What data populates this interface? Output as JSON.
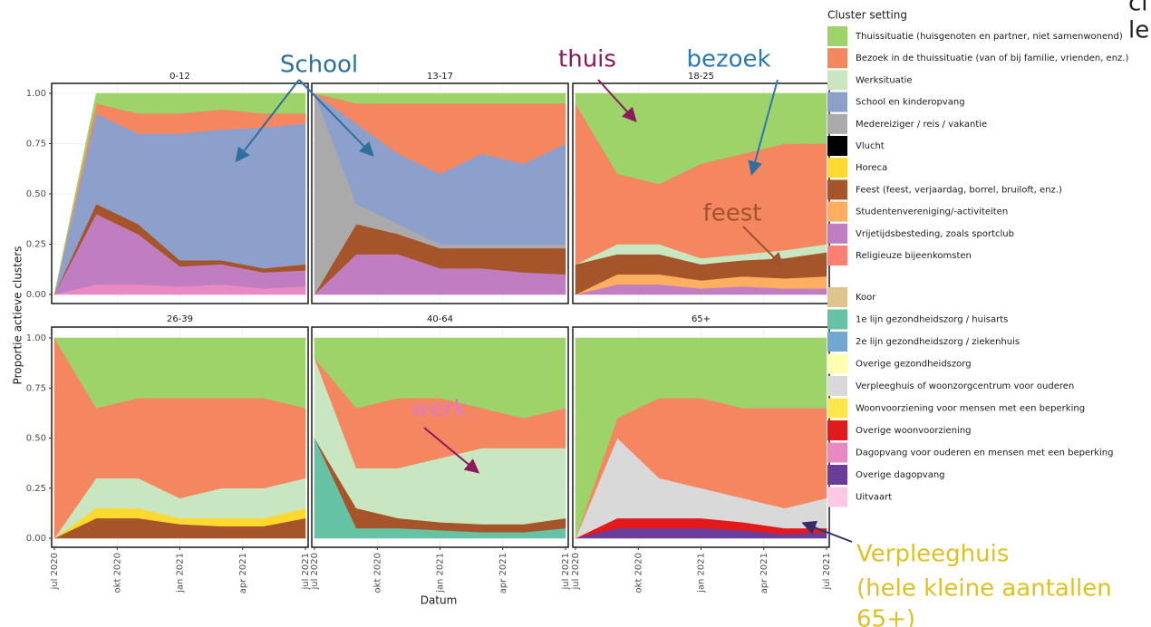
{
  "chart_data": [
    {
      "type": "area",
      "stacked": true,
      "title": "0-12",
      "x": [
        "2020-07",
        "2020-09",
        "2020-11",
        "2021-01",
        "2021-03",
        "2021-05",
        "2021-07"
      ],
      "xlim": [
        "2020-07",
        "2021-07"
      ],
      "xticks": [
        {
          "value": "2020-07",
          "label": "jul 2020"
        },
        {
          "value": "2020-10",
          "label": "okt 2020"
        },
        {
          "value": "2021-01",
          "label": "jan 2021"
        },
        {
          "value": "2021-04",
          "label": "apr 2021"
        },
        {
          "value": "2021-07",
          "label": "jul 2021"
        }
      ],
      "ylim": [
        0,
        1
      ],
      "yticks": [
        {
          "value": 0,
          "label": "0.00"
        },
        {
          "value": 0.25,
          "label": "0.25"
        },
        {
          "value": 0.5,
          "label": "0.50"
        },
        {
          "value": 0.75,
          "label": "0.75"
        },
        {
          "value": 1,
          "label": "1.00"
        }
      ],
      "grid": true,
      "series": [
        {
          "name": "Thuissituatie (huisgenoten en partner, niet samenwonend)",
          "color": "#9ed36a",
          "values": [
            0,
            0.05,
            0.1,
            0.1,
            0.08,
            0.1,
            0.1
          ]
        },
        {
          "name": "Bezoek in de thuissituatie (van of bij familie, vrienden, enz.)",
          "color": "#f4875f",
          "values": [
            0,
            0.05,
            0.1,
            0.1,
            0.1,
            0.07,
            0.05
          ]
        },
        {
          "name": "School en kinderopvang",
          "color": "#8da0cb",
          "values": [
            0,
            0.45,
            0.45,
            0.63,
            0.65,
            0.7,
            0.7
          ]
        },
        {
          "name": "Feest (feest, verjaardag, borrel, bruiloft, enz.)",
          "color": "#a6542a",
          "values": [
            0,
            0.05,
            0.05,
            0.03,
            0.02,
            0.02,
            0.03
          ]
        },
        {
          "name": "Vrijetijdsbesteding, zoals sportclub",
          "color": "#c07ec0",
          "values": [
            0,
            0.35,
            0.25,
            0.1,
            0.1,
            0.08,
            0.08
          ]
        },
        {
          "name": "Dagopvang voor ouderen en mensen met een beperking",
          "color": "#e78ac3",
          "values": [
            0,
            0.05,
            0.05,
            0.04,
            0.05,
            0.03,
            0.04
          ]
        }
      ]
    },
    {
      "type": "area",
      "stacked": true,
      "title": "13-17",
      "x": [
        "2020-07",
        "2020-09",
        "2020-11",
        "2021-01",
        "2021-03",
        "2021-05",
        "2021-07"
      ],
      "xlim": [
        "2020-07",
        "2021-07"
      ],
      "xticks": [
        {
          "value": "2020-07",
          "label": "jul 2020"
        },
        {
          "value": "2020-10",
          "label": "okt 2020"
        },
        {
          "value": "2021-01",
          "label": "jan 2021"
        },
        {
          "value": "2021-04",
          "label": "apr 2021"
        },
        {
          "value": "2021-07",
          "label": "jul 2021"
        }
      ],
      "ylim": [
        0,
        1
      ],
      "yticks": [
        {
          "value": 0,
          "label": "0.00"
        },
        {
          "value": 0.25,
          "label": "0.25"
        },
        {
          "value": 0.5,
          "label": "0.50"
        },
        {
          "value": 0.75,
          "label": "0.75"
        },
        {
          "value": 1,
          "label": "1.00"
        }
      ],
      "grid": true,
      "series": [
        {
          "name": "Thuissituatie (huisgenoten en partner, niet samenwonend)",
          "color": "#9ed36a",
          "values": [
            0,
            0.05,
            0.05,
            0.05,
            0.05,
            0.05,
            0.05
          ]
        },
        {
          "name": "Bezoek in de thuissituatie (van of bij familie, vrienden, enz.)",
          "color": "#f4875f",
          "values": [
            0,
            0.1,
            0.25,
            0.35,
            0.25,
            0.3,
            0.2
          ]
        },
        {
          "name": "School en kinderopvang",
          "color": "#8da0cb",
          "values": [
            0,
            0.4,
            0.35,
            0.35,
            0.45,
            0.4,
            0.5
          ]
        },
        {
          "name": "Medereiziger / reis / vakantie",
          "color": "#aaaaaa",
          "values": [
            1,
            0.1,
            0.05,
            0.02,
            0.02,
            0.02,
            0.02
          ]
        },
        {
          "name": "Feest (feest, verjaardag, borrel, bruiloft, enz.)",
          "color": "#a6542a",
          "values": [
            0,
            0.15,
            0.1,
            0.1,
            0.1,
            0.12,
            0.13
          ]
        },
        {
          "name": "Vrijetijdsbesteding, zoals sportclub",
          "color": "#c07ec0",
          "values": [
            0,
            0.2,
            0.2,
            0.13,
            0.13,
            0.11,
            0.1
          ]
        }
      ]
    },
    {
      "type": "area",
      "stacked": true,
      "title": "18-25",
      "x": [
        "2020-07",
        "2020-09",
        "2020-11",
        "2021-01",
        "2021-03",
        "2021-05",
        "2021-07"
      ],
      "xlim": [
        "2020-07",
        "2021-07"
      ],
      "xticks": [
        {
          "value": "2020-07",
          "label": "jul 2020"
        },
        {
          "value": "2020-10",
          "label": "okt 2020"
        },
        {
          "value": "2021-01",
          "label": "jan 2021"
        },
        {
          "value": "2021-04",
          "label": "apr 2021"
        },
        {
          "value": "2021-07",
          "label": "jul 2021"
        }
      ],
      "ylim": [
        0,
        1
      ],
      "yticks": [
        {
          "value": 0,
          "label": "0.00"
        },
        {
          "value": 0.25,
          "label": "0.25"
        },
        {
          "value": 0.5,
          "label": "0.50"
        },
        {
          "value": 0.75,
          "label": "0.75"
        },
        {
          "value": 1,
          "label": "1.00"
        }
      ],
      "grid": true,
      "series": [
        {
          "name": "Thuissituatie (huisgenoten en partner, niet samenwonend)",
          "color": "#9ed36a",
          "values": [
            0.05,
            0.4,
            0.45,
            0.35,
            0.3,
            0.25,
            0.25
          ]
        },
        {
          "name": "Bezoek in de thuissituatie (van of bij familie, vrienden, enz.)",
          "color": "#f4875f",
          "values": [
            0.8,
            0.35,
            0.3,
            0.47,
            0.5,
            0.53,
            0.5
          ]
        },
        {
          "name": "Werksituatie",
          "color": "#c8e6c0",
          "values": [
            0,
            0.05,
            0.05,
            0.03,
            0.03,
            0.04,
            0.04
          ]
        },
        {
          "name": "Feest (feest, verjaardag, borrel, bruiloft, enz.)",
          "color": "#a6542a",
          "values": [
            0.15,
            0.1,
            0.1,
            0.08,
            0.08,
            0.1,
            0.12
          ]
        },
        {
          "name": "Studentenvereniging/-activiteiten",
          "color": "#fdae61",
          "values": [
            0,
            0.05,
            0.05,
            0.04,
            0.05,
            0.05,
            0.06
          ]
        },
        {
          "name": "Vrijetijdsbesteding, zoals sportclub",
          "color": "#c07ec0",
          "values": [
            0,
            0.05,
            0.05,
            0.03,
            0.04,
            0.03,
            0.03
          ]
        }
      ]
    },
    {
      "type": "area",
      "stacked": true,
      "title": "26-39",
      "x": [
        "2020-07",
        "2020-09",
        "2020-11",
        "2021-01",
        "2021-03",
        "2021-05",
        "2021-07"
      ],
      "xlim": [
        "2020-07",
        "2021-07"
      ],
      "xticks": [
        {
          "value": "2020-07",
          "label": "jul 2020"
        },
        {
          "value": "2020-10",
          "label": "okt 2020"
        },
        {
          "value": "2021-01",
          "label": "jan 2021"
        },
        {
          "value": "2021-04",
          "label": "apr 2021"
        },
        {
          "value": "2021-07",
          "label": "jul 2021"
        }
      ],
      "ylim": [
        0,
        1
      ],
      "yticks": [
        {
          "value": 0,
          "label": "0.00"
        },
        {
          "value": 0.25,
          "label": "0.25"
        },
        {
          "value": 0.5,
          "label": "0.50"
        },
        {
          "value": 0.75,
          "label": "0.75"
        },
        {
          "value": 1,
          "label": "1.00"
        }
      ],
      "grid": true,
      "series": [
        {
          "name": "Thuissituatie (huisgenoten en partner, niet samenwonend)",
          "color": "#9ed36a",
          "values": [
            0,
            0.35,
            0.3,
            0.3,
            0.3,
            0.3,
            0.35
          ]
        },
        {
          "name": "Bezoek in de thuissituatie (van of bij familie, vrienden, enz.)",
          "color": "#f4875f",
          "values": [
            1,
            0.35,
            0.4,
            0.5,
            0.45,
            0.45,
            0.35
          ]
        },
        {
          "name": "Werksituatie",
          "color": "#c8e6c0",
          "values": [
            0,
            0.15,
            0.15,
            0.1,
            0.15,
            0.15,
            0.15
          ]
        },
        {
          "name": "Horeca",
          "color": "#ffd92f",
          "values": [
            0,
            0.05,
            0.05,
            0.03,
            0.04,
            0.04,
            0.05
          ]
        },
        {
          "name": "Feest (feest, verjaardag, borrel, bruiloft, enz.)",
          "color": "#a6542a",
          "values": [
            0,
            0.1,
            0.1,
            0.07,
            0.06,
            0.06,
            0.1
          ]
        }
      ]
    },
    {
      "type": "area",
      "stacked": true,
      "title": "40-64",
      "x": [
        "2020-07",
        "2020-09",
        "2020-11",
        "2021-01",
        "2021-03",
        "2021-05",
        "2021-07"
      ],
      "xlim": [
        "2020-07",
        "2021-07"
      ],
      "xticks": [
        {
          "value": "2020-07",
          "label": "jul 2020"
        },
        {
          "value": "2020-10",
          "label": "okt 2020"
        },
        {
          "value": "2021-01",
          "label": "jan 2021"
        },
        {
          "value": "2021-04",
          "label": "apr 2021"
        },
        {
          "value": "2021-07",
          "label": "jul 2021"
        }
      ],
      "ylim": [
        0,
        1
      ],
      "yticks": [
        {
          "value": 0,
          "label": "0.00"
        },
        {
          "value": 0.25,
          "label": "0.25"
        },
        {
          "value": 0.5,
          "label": "0.50"
        },
        {
          "value": 0.75,
          "label": "0.75"
        },
        {
          "value": 1,
          "label": "1.00"
        }
      ],
      "grid": true,
      "series": [
        {
          "name": "Thuissituatie (huisgenoten en partner, niet samenwonend)",
          "color": "#9ed36a",
          "values": [
            0.1,
            0.35,
            0.3,
            0.3,
            0.35,
            0.4,
            0.35
          ]
        },
        {
          "name": "Bezoek in de thuissituatie (van of bij familie, vrienden, enz.)",
          "color": "#f4875f",
          "values": [
            0,
            0.3,
            0.35,
            0.3,
            0.2,
            0.15,
            0.2
          ]
        },
        {
          "name": "Werksituatie",
          "color": "#c8e6c0",
          "values": [
            0.4,
            0.2,
            0.25,
            0.32,
            0.38,
            0.38,
            0.35
          ]
        },
        {
          "name": "Feest (feest, verjaardag, borrel, bruiloft, enz.)",
          "color": "#a6542a",
          "values": [
            0,
            0.1,
            0.05,
            0.04,
            0.04,
            0.04,
            0.05
          ]
        },
        {
          "name": "1e lijn gezondheidszorg / huisarts",
          "color": "#66c2a5",
          "values": [
            0.5,
            0.05,
            0.05,
            0.04,
            0.03,
            0.03,
            0.05
          ]
        }
      ]
    },
    {
      "type": "area",
      "stacked": true,
      "title": "65+",
      "x": [
        "2020-07",
        "2020-09",
        "2020-11",
        "2021-01",
        "2021-03",
        "2021-05",
        "2021-07"
      ],
      "xlim": [
        "2020-07",
        "2021-07"
      ],
      "xticks": [
        {
          "value": "2020-07",
          "label": "jul 2020"
        },
        {
          "value": "2020-10",
          "label": "okt 2020"
        },
        {
          "value": "2021-01",
          "label": "jan 2021"
        },
        {
          "value": "2021-04",
          "label": "apr 2021"
        },
        {
          "value": "2021-07",
          "label": "jul 2021"
        }
      ],
      "ylim": [
        0,
        1
      ],
      "yticks": [
        {
          "value": 0,
          "label": "0.00"
        },
        {
          "value": 0.25,
          "label": "0.25"
        },
        {
          "value": 0.5,
          "label": "0.50"
        },
        {
          "value": 0.75,
          "label": "0.75"
        },
        {
          "value": 1,
          "label": "1.00"
        }
      ],
      "grid": true,
      "series": [
        {
          "name": "Thuissituatie (huisgenoten en partner, niet samenwonend)",
          "color": "#9ed36a",
          "values": [
            1,
            0.4,
            0.3,
            0.3,
            0.35,
            0.35,
            0.35
          ]
        },
        {
          "name": "Bezoek in de thuissituatie (van of bij familie, vrienden, enz.)",
          "color": "#f4875f",
          "values": [
            0,
            0.1,
            0.4,
            0.45,
            0.45,
            0.5,
            0.45
          ]
        },
        {
          "name": "Verpleeghuis of woonzorgcentrum voor ouderen",
          "color": "#d9d9d9",
          "values": [
            0,
            0.4,
            0.2,
            0.15,
            0.12,
            0.1,
            0.15
          ]
        },
        {
          "name": "Overige woonvoorziening",
          "color": "#e31a1c",
          "values": [
            0,
            0.05,
            0.05,
            0.05,
            0.04,
            0.03,
            0.02
          ]
        },
        {
          "name": "Overige dagopvang",
          "color": "#6a3d9a",
          "values": [
            0,
            0.05,
            0.05,
            0.05,
            0.04,
            0.02,
            0.03
          ]
        }
      ]
    }
  ],
  "y_label": "Proportie actieve clusters",
  "x_label": "Datum",
  "legend": {
    "title": "Cluster setting",
    "items": [
      {
        "name": "Thuissituatie (huisgenoten en partner, niet samenwonend)",
        "color": "#9ed36a"
      },
      {
        "name": "Bezoek in de thuissituatie (van of bij familie, vrienden, enz.)",
        "color": "#f4875f"
      },
      {
        "name": "Werksituatie",
        "color": "#c8e6c0"
      },
      {
        "name": "School en kinderopvang",
        "color": "#8da0cb"
      },
      {
        "name": "Medereiziger / reis / vakantie",
        "color": "#aaaaaa"
      },
      {
        "name": "Vlucht",
        "color": "#000000"
      },
      {
        "name": "Horeca",
        "color": "#ffd92f"
      },
      {
        "name": "Feest (feest, verjaardag, borrel, bruiloft, enz.)",
        "color": "#a6542a"
      },
      {
        "name": "Studentenvereniging/-activiteiten",
        "color": "#fdae61"
      },
      {
        "name": "Vrijetijdsbesteding, zoals sportclub",
        "color": "#c07ec0"
      },
      {
        "name": "Religieuze bijeenkomsten",
        "color": "#fb8072"
      },
      {
        "name": "Koor",
        "color": "#e0c48f"
      },
      {
        "name": "1e lijn gezondheidszorg / huisarts",
        "color": "#66c2a5"
      },
      {
        "name": "2e lijn gezondheidszorg / ziekenhuis",
        "color": "#72a8d0"
      },
      {
        "name": "Overige gezondheidszorg",
        "color": "#ffffb3"
      },
      {
        "name": "Verpleeghuis of woonzorgcentrum voor ouderen",
        "color": "#d9d9d9"
      },
      {
        "name": "Woonvoorziening voor mensen met een beperking",
        "color": "#fde74c"
      },
      {
        "name": "Overige woonvoorziening",
        "color": "#e31a1c"
      },
      {
        "name": "Dagopvang voor ouderen en mensen met een beperking",
        "color": "#e78ac3"
      },
      {
        "name": "Overige dagopvang",
        "color": "#6a3d9a"
      },
      {
        "name": "Uitvaart",
        "color": "#fbc9e6"
      }
    ]
  },
  "annotations": [
    {
      "text": "School",
      "color": "#2e6f9e"
    },
    {
      "text": "thuis",
      "color": "#8b1a5c"
    },
    {
      "text": "bezoek",
      "color": "#2a79b0"
    },
    {
      "text": "feest",
      "color": "#a0522d"
    },
    {
      "text": "werk",
      "color": "#e07bc0"
    },
    {
      "text": "Verpleeghuis",
      "color": "#e0c020"
    },
    {
      "text": "(hele kleine aantallen",
      "color": "#e0c020"
    },
    {
      "text": "65+)",
      "color": "#e0c020"
    },
    {
      "text": "cl",
      "color": "#222222"
    },
    {
      "text": "le",
      "color": "#222222"
    }
  ]
}
